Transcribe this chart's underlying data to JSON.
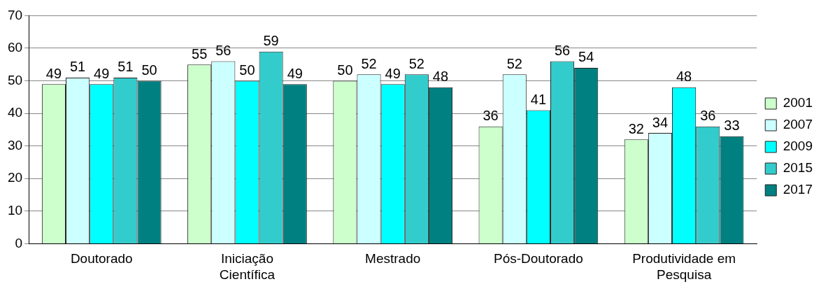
{
  "chart_data": {
    "type": "bar",
    "categories": [
      "Doutorado",
      "Iniciação Científica",
      "Mestrado",
      "Pós-Doutorado",
      "Produtividade em Pesquisa"
    ],
    "series": [
      {
        "name": "2001",
        "color": "#ccffcc",
        "values": [
          49,
          55,
          50,
          36,
          32
        ]
      },
      {
        "name": "2007",
        "color": "#ccffff",
        "values": [
          51,
          56,
          52,
          52,
          34
        ]
      },
      {
        "name": "2009",
        "color": "#00ffff",
        "values": [
          49,
          50,
          49,
          41,
          48
        ]
      },
      {
        "name": "2015",
        "color": "#33cccc",
        "values": [
          51,
          59,
          52,
          56,
          36
        ]
      },
      {
        "name": "2017",
        "color": "#008080",
        "values": [
          50,
          49,
          48,
          54,
          33
        ]
      }
    ],
    "ylim": [
      0,
      70
    ],
    "yticks": [
      0,
      10,
      20,
      30,
      40,
      50,
      60,
      70
    ],
    "grid": "y",
    "legend": "right",
    "data_labels": true
  }
}
